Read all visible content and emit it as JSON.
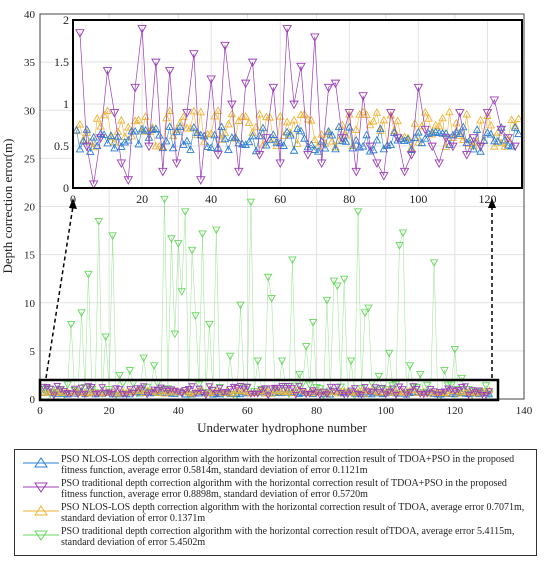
{
  "chart_data": {
    "type": "scatter",
    "xlabel": "Underwater hydrophone number",
    "ylabel": "Depth correction error(m)",
    "xlim": [
      0,
      140
    ],
    "ylim": [
      0,
      40
    ],
    "xticks": [
      0,
      20,
      40,
      60,
      80,
      100,
      120,
      140
    ],
    "yticks": [
      0,
      5,
      10,
      15,
      20,
      25,
      30,
      35,
      40
    ],
    "grid": true,
    "legend_position": "bottom",
    "inset": {
      "xlim": [
        0,
        130
      ],
      "ylim": [
        0,
        2
      ],
      "xticks": [
        0,
        20,
        40,
        60,
        80,
        100,
        120
      ],
      "yticks": [
        0,
        0.5,
        1,
        1.5,
        2
      ],
      "zoom_region": {
        "x": [
          0,
          130
        ],
        "y": [
          0,
          2
        ]
      }
    },
    "series": [
      {
        "label": "PSO NLOS-LOS depth correction algorithm with the horizontal correction result of TDOA+PSO in the proposed fitness function, average error 0.5814m, standard deviation of error 0.1121m",
        "color": "#2a7fd4",
        "marker": "triangle-up",
        "average_error": 0.5814,
        "std_error": 0.1121
      },
      {
        "label": "PSO traditional depth correction algorithm with the horizontal correction result of TDOA+PSO in the proposed fitness function, average error 0.8898m, standard deviation of error 0.5720m",
        "color": "#9b3cb6",
        "marker": "triangle-down",
        "average_error": 0.8898,
        "std_error": 0.572
      },
      {
        "label": "PSO NLOS-LOS depth correction algorithm with the horizontal correction result of TDOA, average error 0.7071m, standard deviation of error 0.1371m",
        "color": "#f0b232",
        "marker": "triangle-up",
        "average_error": 0.7071,
        "std_error": 0.1371
      },
      {
        "label": "PSO traditional depth correction algorithm with the horizontal correction result ofTDOA, average error 5.4115m, standard deviation of error 5.4502m",
        "color": "#66d85c",
        "marker": "triangle-down",
        "average_error": 5.4115,
        "std_error": 5.4502
      }
    ],
    "highlighted_points_green": [
      {
        "x": 9,
        "y": 7.8
      },
      {
        "x": 12,
        "y": 9
      },
      {
        "x": 14,
        "y": 13
      },
      {
        "x": 17,
        "y": 18.5
      },
      {
        "x": 19,
        "y": 6.5
      },
      {
        "x": 21,
        "y": 17
      },
      {
        "x": 23,
        "y": 2.5
      },
      {
        "x": 26,
        "y": 3
      },
      {
        "x": 30,
        "y": 4.3
      },
      {
        "x": 33,
        "y": 3.5
      },
      {
        "x": 36,
        "y": 20.8
      },
      {
        "x": 38,
        "y": 16.7
      },
      {
        "x": 39,
        "y": 6.8
      },
      {
        "x": 40,
        "y": 16.2
      },
      {
        "x": 41,
        "y": 11.2
      },
      {
        "x": 42,
        "y": 19.5
      },
      {
        "x": 44,
        "y": 15.5
      },
      {
        "x": 45,
        "y": 8.7
      },
      {
        "x": 47,
        "y": 17.2
      },
      {
        "x": 49,
        "y": 7.8
      },
      {
        "x": 51,
        "y": 17.6
      },
      {
        "x": 55,
        "y": 4.5
      },
      {
        "x": 58,
        "y": 9.8
      },
      {
        "x": 61,
        "y": 20.5
      },
      {
        "x": 63,
        "y": 4
      },
      {
        "x": 66,
        "y": 12.7
      },
      {
        "x": 67,
        "y": 10.5
      },
      {
        "x": 70,
        "y": 4
      },
      {
        "x": 73,
        "y": 14.5
      },
      {
        "x": 75,
        "y": 2.6
      },
      {
        "x": 77,
        "y": 5.5
      },
      {
        "x": 79,
        "y": 8
      },
      {
        "x": 83,
        "y": 10.3
      },
      {
        "x": 85,
        "y": 12.3
      },
      {
        "x": 86,
        "y": 11.8
      },
      {
        "x": 88,
        "y": 12.5
      },
      {
        "x": 90,
        "y": 4
      },
      {
        "x": 92,
        "y": 19.5
      },
      {
        "x": 94,
        "y": 9
      },
      {
        "x": 95,
        "y": 9.5
      },
      {
        "x": 98,
        "y": 2.4
      },
      {
        "x": 101,
        "y": 4.8
      },
      {
        "x": 104,
        "y": 16
      },
      {
        "x": 105,
        "y": 17.3
      },
      {
        "x": 107,
        "y": 3.5
      },
      {
        "x": 110,
        "y": 2.6
      },
      {
        "x": 114,
        "y": 14.2
      },
      {
        "x": 117,
        "y": 3
      },
      {
        "x": 120,
        "y": 5.2
      },
      {
        "x": 122,
        "y": 2.2
      }
    ],
    "highlighted_points_purple_inset": [
      {
        "x": 2,
        "y": 1.85
      },
      {
        "x": 4,
        "y": 0.5
      },
      {
        "x": 6,
        "y": 0.05
      },
      {
        "x": 8,
        "y": 0.6
      },
      {
        "x": 10,
        "y": 1.4
      },
      {
        "x": 12,
        "y": 0.9
      },
      {
        "x": 14,
        "y": 0.3
      },
      {
        "x": 16,
        "y": 0.1
      },
      {
        "x": 18,
        "y": 1.2
      },
      {
        "x": 20,
        "y": 1.9
      },
      {
        "x": 22,
        "y": 0.5
      },
      {
        "x": 24,
        "y": 1.5
      },
      {
        "x": 26,
        "y": 0.2
      },
      {
        "x": 28,
        "y": 1.4
      },
      {
        "x": 30,
        "y": 0.3
      },
      {
        "x": 33,
        "y": 0.9
      },
      {
        "x": 35,
        "y": 1.6
      },
      {
        "x": 37,
        "y": 0.1
      },
      {
        "x": 40,
        "y": 1.3
      },
      {
        "x": 42,
        "y": 0.4
      },
      {
        "x": 44,
        "y": 1.7
      },
      {
        "x": 46,
        "y": 1
      },
      {
        "x": 48,
        "y": 0.2
      },
      {
        "x": 50,
        "y": 1.25
      },
      {
        "x": 52,
        "y": 1.5
      },
      {
        "x": 54,
        "y": 0.4
      },
      {
        "x": 56,
        "y": 0.6
      },
      {
        "x": 58,
        "y": 1.2
      },
      {
        "x": 60,
        "y": 0.3
      },
      {
        "x": 62,
        "y": 1.9
      },
      {
        "x": 64,
        "y": 1
      },
      {
        "x": 66,
        "y": 1.45
      },
      {
        "x": 68,
        "y": 0.4
      },
      {
        "x": 70,
        "y": 1.8
      },
      {
        "x": 72,
        "y": 0.3
      },
      {
        "x": 74,
        "y": 1.2
      },
      {
        "x": 76,
        "y": 1.25
      },
      {
        "x": 78,
        "y": 0.6
      },
      {
        "x": 80,
        "y": 0.9
      },
      {
        "x": 82,
        "y": 0.2
      },
      {
        "x": 84,
        "y": 1.1
      },
      {
        "x": 86,
        "y": 0.5
      },
      {
        "x": 88,
        "y": 0.3
      },
      {
        "x": 90,
        "y": 0.15
      },
      {
        "x": 92,
        "y": 0.9
      },
      {
        "x": 94,
        "y": 0.6
      },
      {
        "x": 96,
        "y": 0.2
      },
      {
        "x": 98,
        "y": 0.4
      },
      {
        "x": 100,
        "y": 1.2
      },
      {
        "x": 102,
        "y": 0.7
      },
      {
        "x": 104,
        "y": 0.5
      },
      {
        "x": 106,
        "y": 0.3
      },
      {
        "x": 108,
        "y": 0.6
      },
      {
        "x": 110,
        "y": 0.5
      },
      {
        "x": 112,
        "y": 0.9
      },
      {
        "x": 114,
        "y": 0.4
      },
      {
        "x": 116,
        "y": 0.6
      },
      {
        "x": 118,
        "y": 0.5
      },
      {
        "x": 120,
        "y": 0.9
      },
      {
        "x": 122,
        "y": 1.05
      },
      {
        "x": 124,
        "y": 0.7
      },
      {
        "x": 126,
        "y": 0.6
      },
      {
        "x": 128,
        "y": 0.5
      }
    ]
  }
}
